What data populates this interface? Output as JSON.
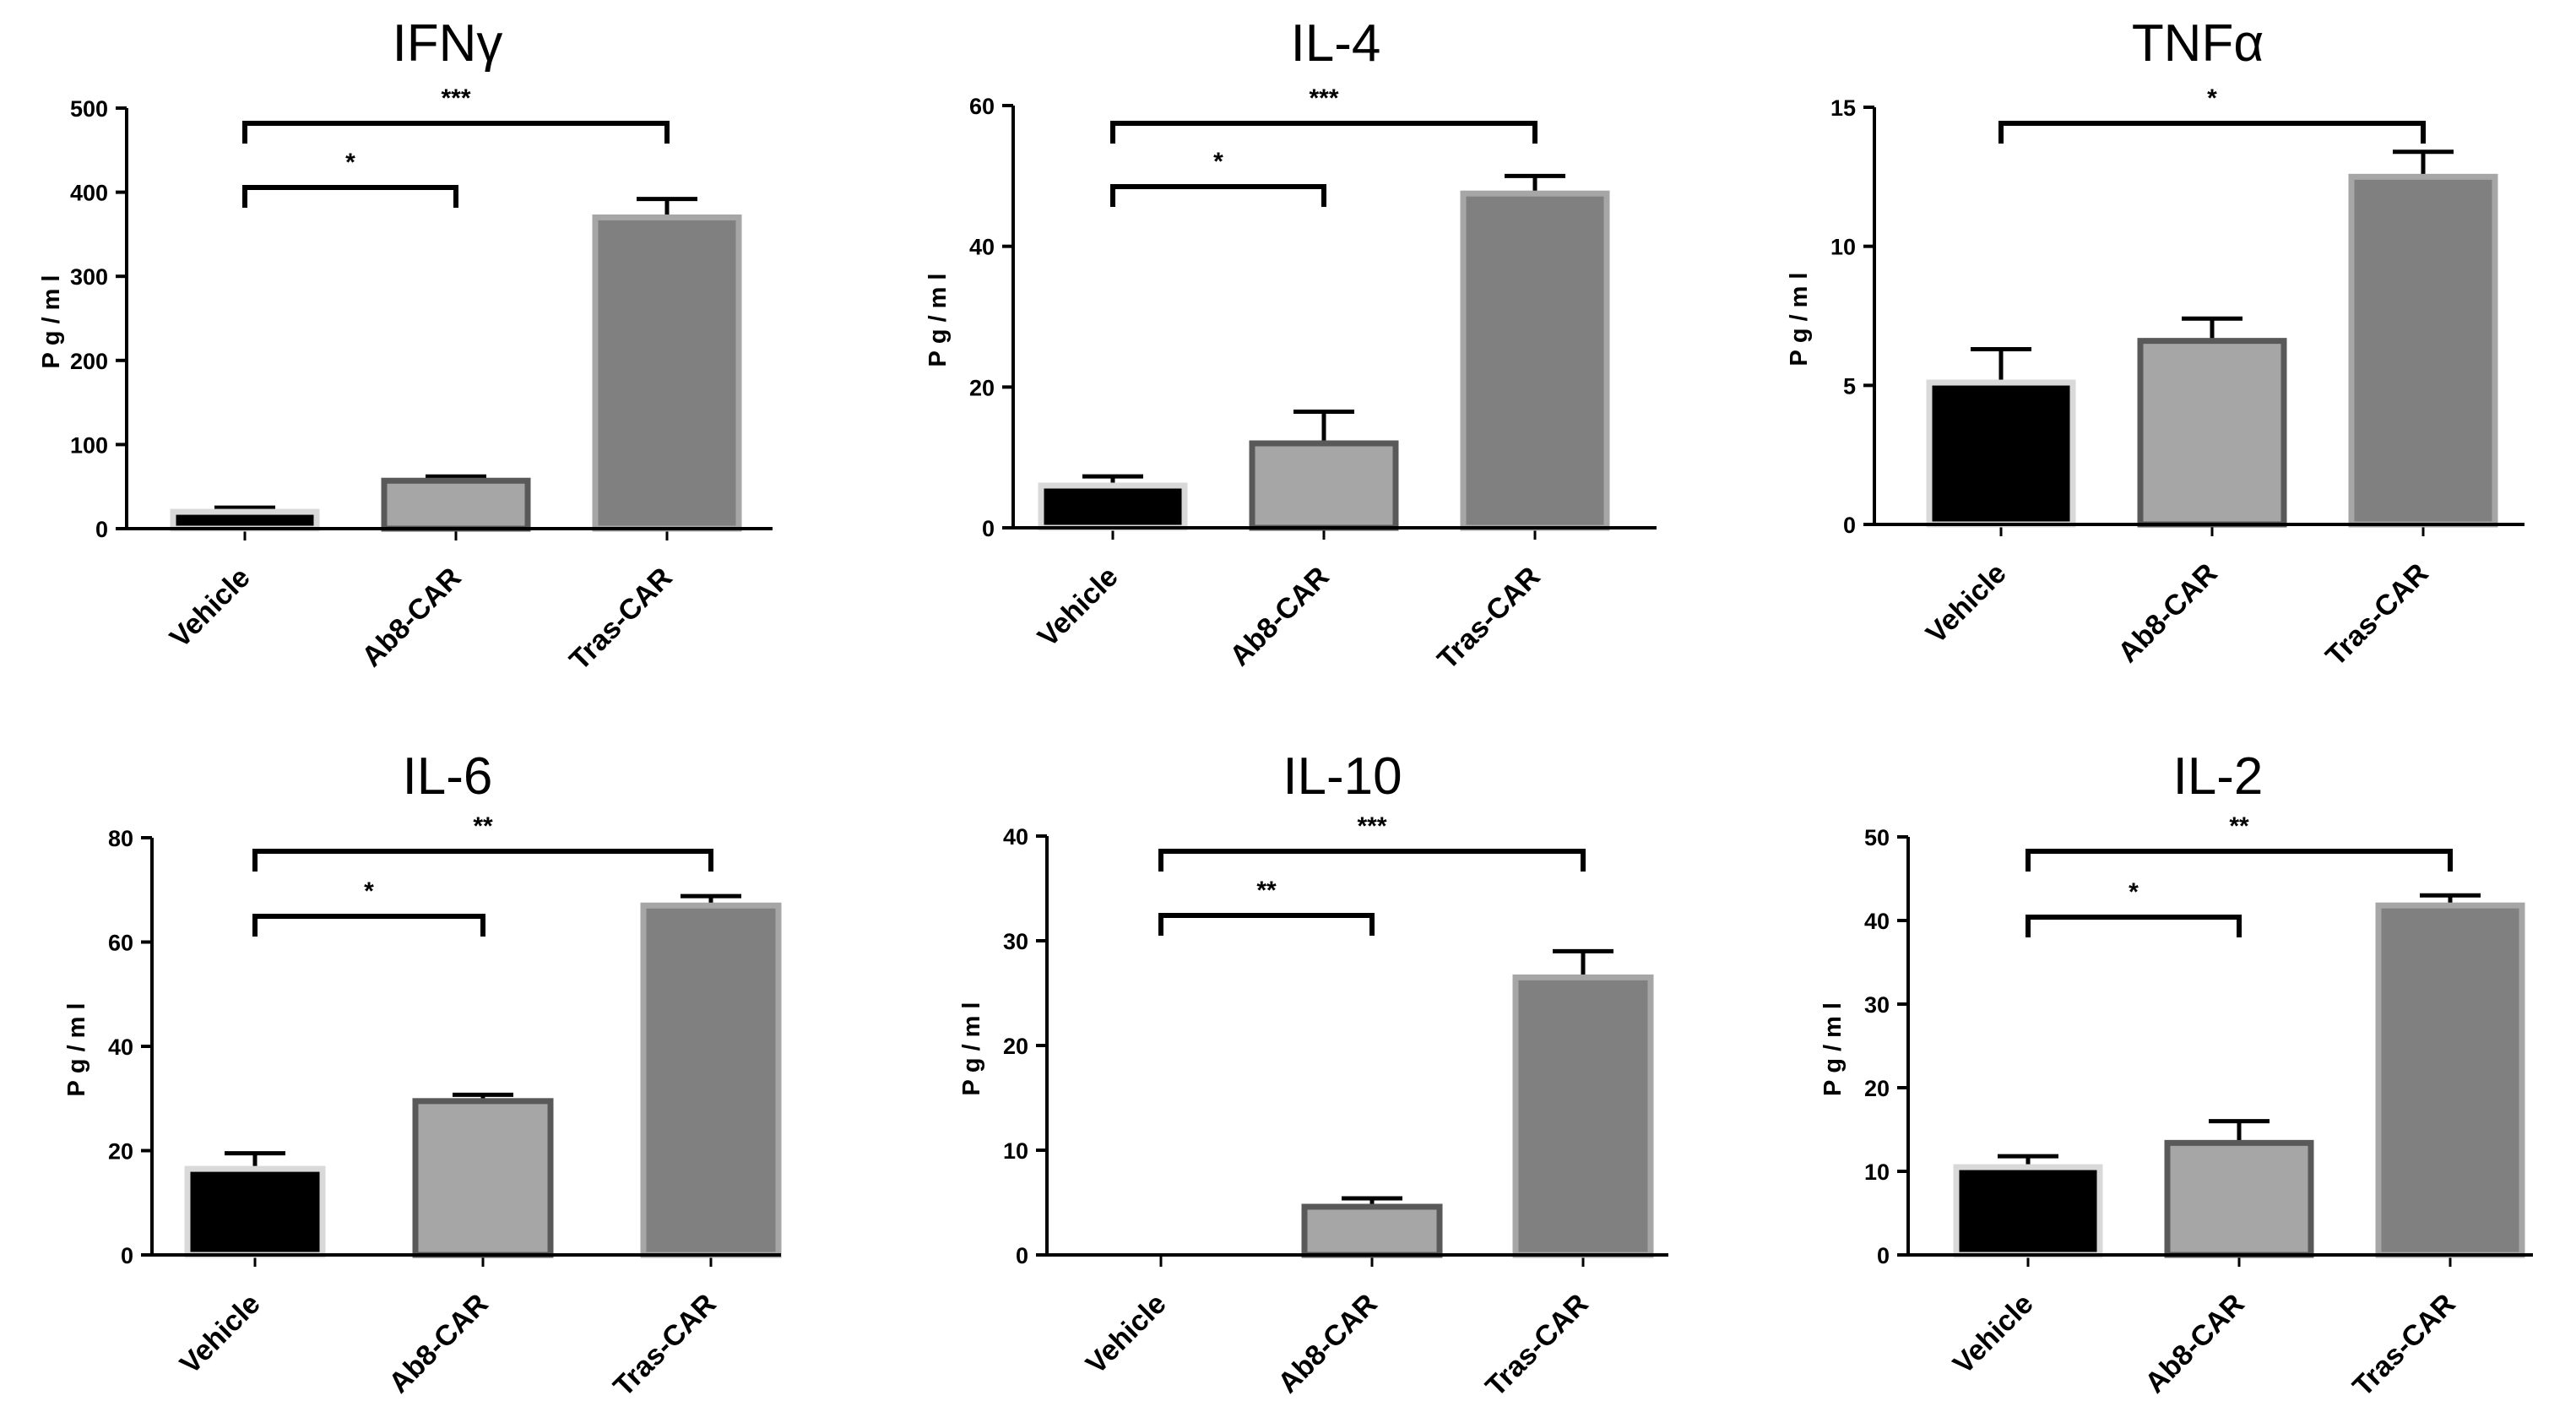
{
  "colors": {
    "vehicle": "#000000",
    "ab8": "#a6a6a6",
    "tras": "#808080",
    "axis": "#000000"
  },
  "chart_data": [
    {
      "type": "bar",
      "title": "IFNγ",
      "ylabel": "Pg/ml",
      "categories": [
        "Vehicle",
        "Ab8-CAR",
        "Tras-CAR"
      ],
      "values": [
        20,
        57,
        370
      ],
      "errors": [
        5,
        5,
        22
      ],
      "ylim": [
        0,
        500
      ],
      "yticks": [
        "0",
        "100",
        "200",
        "300",
        "400",
        "500"
      ],
      "annotations": [
        {
          "from": "Vehicle",
          "to": "Ab8-CAR",
          "label": "*"
        },
        {
          "from": "Vehicle",
          "to": "Tras-CAR",
          "label": "***"
        }
      ]
    },
    {
      "type": "bar",
      "title": "IL-4",
      "ylabel": "Pg/ml",
      "categories": [
        "Vehicle",
        "Ab8-CAR",
        "Tras-CAR"
      ],
      "values": [
        6,
        12,
        47.5
      ],
      "errors": [
        1.3,
        4.5,
        2.5
      ],
      "ylim": [
        0,
        60
      ],
      "yticks": [
        "0",
        "20",
        "40",
        "60"
      ],
      "annotations": [
        {
          "from": "Vehicle",
          "to": "Ab8-CAR",
          "label": "*"
        },
        {
          "from": "Vehicle",
          "to": "Tras-CAR",
          "label": "***"
        }
      ]
    },
    {
      "type": "bar",
      "title": "TNFα",
      "ylabel": "Pg/ml",
      "categories": [
        "Vehicle",
        "Ab8-CAR",
        "Tras-CAR"
      ],
      "values": [
        5.1,
        6.6,
        12.5
      ],
      "errors": [
        1.2,
        0.8,
        0.9
      ],
      "ylim": [
        0,
        15
      ],
      "yticks": [
        "0",
        "5",
        "10",
        "15"
      ],
      "annotations": [
        {
          "from": "Vehicle",
          "to": "Tras-CAR",
          "label": "*"
        }
      ]
    },
    {
      "type": "bar",
      "title": "IL-6",
      "ylabel": "Pg/ml",
      "categories": [
        "Vehicle",
        "Ab8-CAR",
        "Tras-CAR"
      ],
      "values": [
        16.5,
        29.5,
        67
      ],
      "errors": [
        3,
        1.2,
        1.8
      ],
      "ylim": [
        0,
        80
      ],
      "yticks": [
        "0",
        "20",
        "40",
        "60",
        "80"
      ],
      "annotations": [
        {
          "from": "Vehicle",
          "to": "Ab8-CAR",
          "label": "*"
        },
        {
          "from": "Vehicle",
          "to": "Tras-CAR",
          "label": "**"
        }
      ]
    },
    {
      "type": "bar",
      "title": "IL-10",
      "ylabel": "Pg/ml",
      "categories": [
        "Vehicle",
        "Ab8-CAR",
        "Tras-CAR"
      ],
      "values": [
        0,
        4.6,
        26.5
      ],
      "errors": [
        0,
        0.8,
        2.5
      ],
      "ylim": [
        0,
        40
      ],
      "yticks": [
        "0",
        "10",
        "20",
        "30",
        "40"
      ],
      "annotations": [
        {
          "from": "Vehicle",
          "to": "Ab8-CAR",
          "label": "**"
        },
        {
          "from": "Vehicle",
          "to": "Tras-CAR",
          "label": "***"
        }
      ]
    },
    {
      "type": "bar",
      "title": "IL-2",
      "ylabel": "Pg/ml",
      "categories": [
        "Vehicle",
        "Ab8-CAR",
        "Tras-CAR"
      ],
      "values": [
        10.5,
        13.4,
        41.8
      ],
      "errors": [
        1.3,
        2.6,
        1.2
      ],
      "ylim": [
        0,
        50
      ],
      "yticks": [
        "0",
        "10",
        "20",
        "30",
        "40",
        "50"
      ],
      "annotations": [
        {
          "from": "Vehicle",
          "to": "Ab8-CAR",
          "label": "*"
        },
        {
          "from": "Vehicle",
          "to": "Tras-CAR",
          "label": "**"
        }
      ]
    }
  ]
}
